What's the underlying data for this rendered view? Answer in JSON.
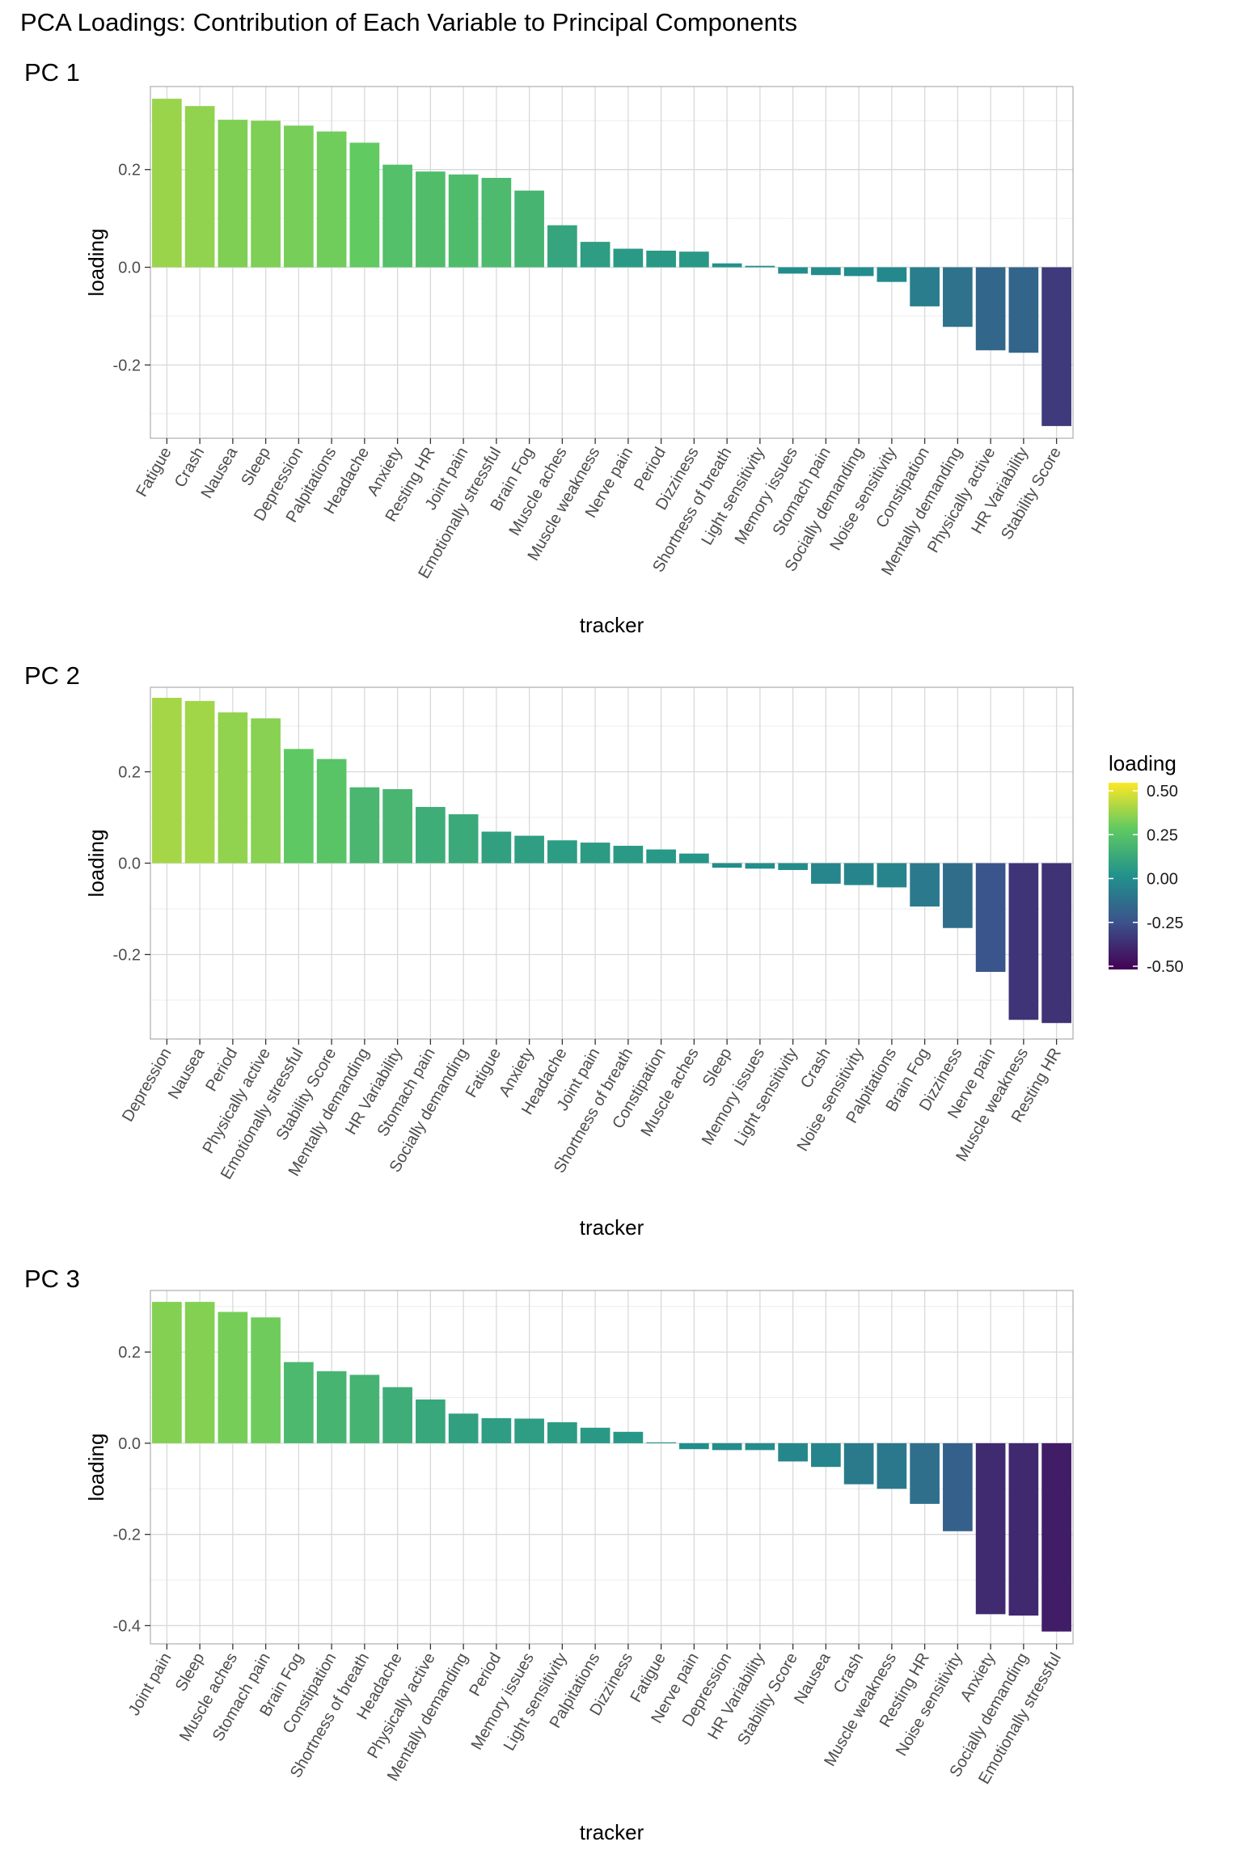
{
  "page_title": "PCA Loadings: Contribution of Each Variable to Principal Components",
  "legend": {
    "title": "loading",
    "labels": [
      "0.50",
      "0.25",
      "0.00",
      "-0.25",
      "-0.50"
    ],
    "range": [
      -0.5,
      0.5
    ],
    "colors": [
      "#440154",
      "#3b528b",
      "#21918c",
      "#5ec962",
      "#fde725"
    ]
  },
  "chart_data": [
    {
      "type": "bar",
      "title": "PC 1",
      "xlabel": "tracker",
      "ylabel": "loading",
      "ylim": [
        -0.35,
        0.37
      ],
      "yticks": [
        -0.2,
        0.0,
        0.2
      ],
      "ytick_labels": [
        "-0.2",
        "0.0",
        "0.2"
      ],
      "grid": true,
      "categories": [
        "Fatigue",
        "Crash",
        "Nausea",
        "Sleep",
        "Depression",
        "Palpitations",
        "Headache",
        "Anxiety",
        "Resting HR",
        "Joint pain",
        "Emotionally stressful",
        "Brain Fog",
        "Muscle aches",
        "Muscle weakness",
        "Nerve pain",
        "Period",
        "Dizziness",
        "Shortness of breath",
        "Light sensitivity",
        "Memory issues",
        "Stomach pain",
        "Socially demanding",
        "Noise sensitivity",
        "Constipation",
        "Mentally demanding",
        "Physically active",
        "HR Variability",
        "Stability Score"
      ],
      "values": [
        0.345,
        0.33,
        0.302,
        0.3,
        0.29,
        0.278,
        0.255,
        0.21,
        0.196,
        0.19,
        0.183,
        0.157,
        0.086,
        0.052,
        0.038,
        0.034,
        0.032,
        0.008,
        0.003,
        -0.013,
        -0.016,
        -0.018,
        -0.03,
        -0.08,
        -0.122,
        -0.17,
        -0.175,
        -0.325
      ]
    },
    {
      "type": "bar",
      "title": "PC 2",
      "xlabel": "tracker",
      "ylabel": "loading",
      "ylim": [
        -0.385,
        0.385
      ],
      "yticks": [
        -0.2,
        0.0,
        0.2
      ],
      "ytick_labels": [
        "-0.2",
        "0.0",
        "0.2"
      ],
      "grid": true,
      "categories": [
        "Depression",
        "Nausea",
        "Period",
        "Physically active",
        "Emotionally stressful",
        "Stability Score",
        "Mentally demanding",
        "HR Variability",
        "Stomach pain",
        "Socially demanding",
        "Fatigue",
        "Anxiety",
        "Headache",
        "Joint pain",
        "Shortness of breath",
        "Constipation",
        "Muscle aches",
        "Sleep",
        "Memory issues",
        "Light sensitivity",
        "Crash",
        "Noise sensitivity",
        "Palpitations",
        "Brain Fog",
        "Dizziness",
        "Nerve pain",
        "Muscle weakness",
        "Resting HR"
      ],
      "values": [
        0.362,
        0.355,
        0.33,
        0.317,
        0.25,
        0.228,
        0.166,
        0.162,
        0.123,
        0.107,
        0.069,
        0.06,
        0.05,
        0.045,
        0.038,
        0.03,
        0.021,
        -0.01,
        -0.012,
        -0.015,
        -0.045,
        -0.048,
        -0.053,
        -0.095,
        -0.142,
        -0.238,
        -0.343,
        -0.35
      ]
    },
    {
      "type": "bar",
      "title": "PC 3",
      "xlabel": "tracker",
      "ylabel": "loading",
      "ylim": [
        -0.44,
        0.335
      ],
      "yticks": [
        -0.4,
        -0.2,
        0.0,
        0.2
      ],
      "ytick_labels": [
        "-0.4",
        "-0.2",
        "0.0",
        "0.2"
      ],
      "grid": true,
      "categories": [
        "Joint pain",
        "Sleep",
        "Muscle aches",
        "Stomach pain",
        "Brain Fog",
        "Constipation",
        "Shortness of breath",
        "Headache",
        "Physically active",
        "Mentally demanding",
        "Period",
        "Memory issues",
        "Light sensitivity",
        "Palpitations",
        "Dizziness",
        "Fatigue",
        "Nerve pain",
        "Depression",
        "HR Variability",
        "Stability Score",
        "Nausea",
        "Crash",
        "Muscle weakness",
        "Resting HR",
        "Noise sensitivity",
        "Anxiety",
        "Socially demanding",
        "Emotionally stressful"
      ],
      "values": [
        0.31,
        0.31,
        0.288,
        0.276,
        0.178,
        0.158,
        0.15,
        0.123,
        0.096,
        0.065,
        0.055,
        0.054,
        0.046,
        0.034,
        0.025,
        0.002,
        -0.013,
        -0.015,
        -0.015,
        -0.04,
        -0.052,
        -0.09,
        -0.1,
        -0.133,
        -0.193,
        -0.375,
        -0.378,
        -0.413
      ]
    }
  ]
}
